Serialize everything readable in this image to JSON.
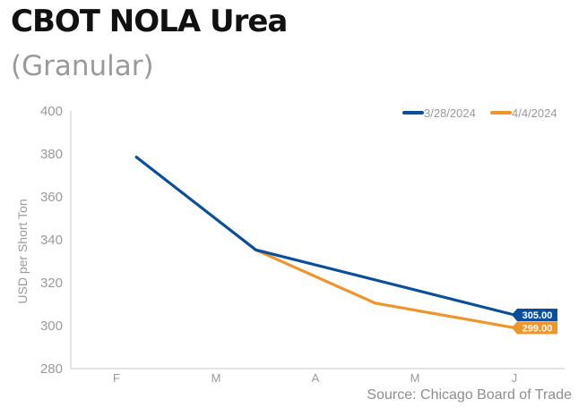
{
  "header": {
    "title": "CBOT NOLA Urea",
    "subtitle": "(Granular)"
  },
  "footer": {
    "source": "Source: Chicago Board of Trade"
  },
  "chart_data": {
    "type": "line",
    "title": "CBOT NOLA Urea",
    "subtitle": "(Granular)",
    "xlabel": "",
    "ylabel": "USD per Short Ton",
    "categories": [
      "F",
      "M",
      "A",
      "M",
      "J"
    ],
    "ylim": [
      280,
      400
    ],
    "yticks": [
      280,
      300,
      320,
      340,
      360,
      380,
      400
    ],
    "grid": false,
    "legend": "top-right",
    "series": [
      {
        "name": "3/28/2024",
        "color": "#0b4f9c",
        "x": [
          0.2,
          1.4,
          4
        ],
        "values": [
          378.5,
          335.3,
          305
        ],
        "end_label": "305.00"
      },
      {
        "name": "4/4/2024",
        "color": "#f0952b",
        "x": [
          1.4,
          2.6,
          4
        ],
        "values": [
          335.3,
          310.5,
          299
        ],
        "end_label": "299.00"
      }
    ]
  }
}
